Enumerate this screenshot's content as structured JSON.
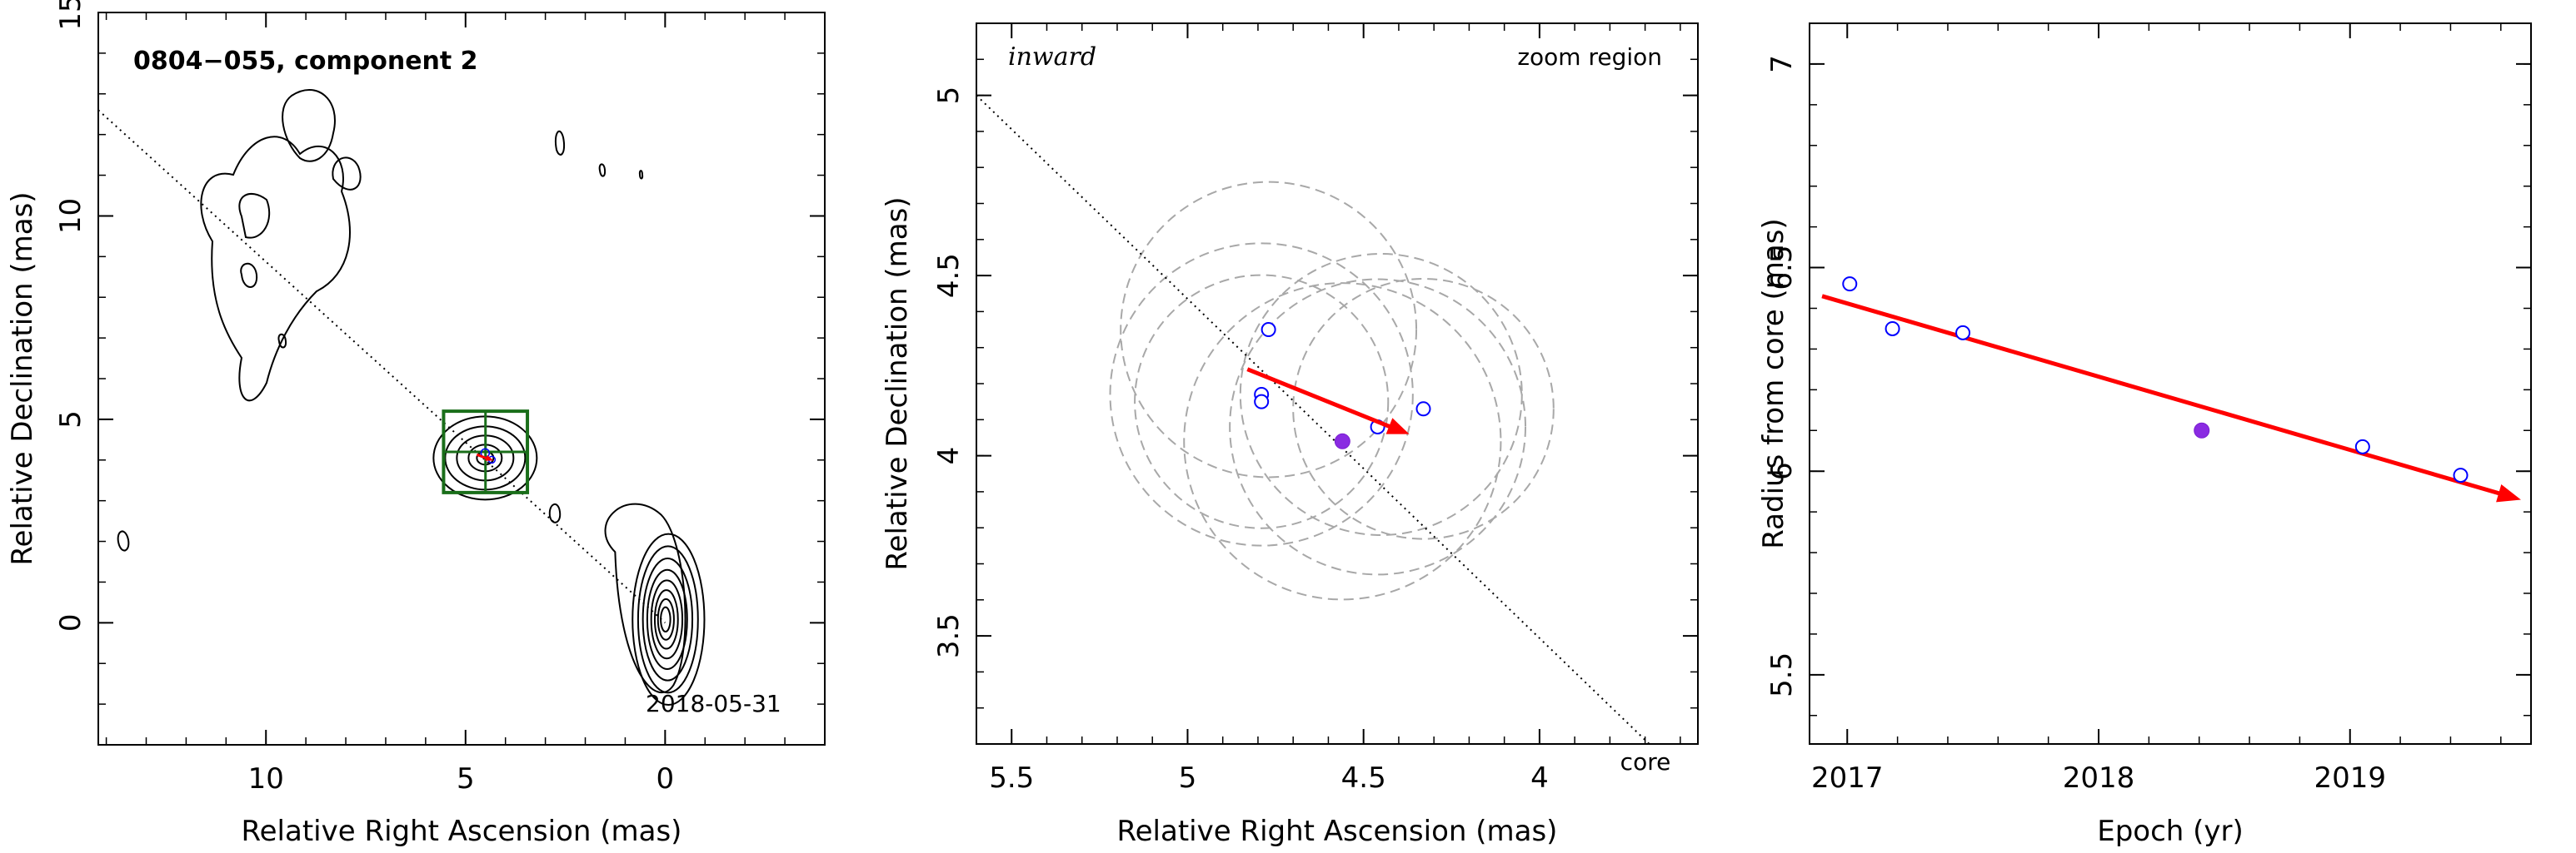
{
  "chart_data": [
    {
      "type": "contour",
      "panel": "left",
      "title": "0804−055, component 2",
      "date_label": "2018-05-31",
      "xlabel": "Relative Right Ascension (mas)",
      "ylabel": "Relative Declination (mas)",
      "xlim": [
        14.2,
        -4.0
      ],
      "ylim": [
        -3.0,
        15.0
      ],
      "xticks": [
        10,
        5,
        0
      ],
      "yticks": [
        0,
        5,
        10,
        15
      ],
      "x_tick_labels": [
        "10",
        "5",
        "0"
      ],
      "y_tick_labels": [
        "0",
        "5",
        "10",
        "15"
      ],
      "core_position": [
        0,
        0
      ],
      "core_contours": [
        {
          "rx": 0.9,
          "ry": 2.1
        },
        {
          "rx": 0.75,
          "ry": 1.8
        },
        {
          "rx": 0.62,
          "ry": 1.5
        },
        {
          "rx": 0.5,
          "ry": 1.22
        },
        {
          "rx": 0.39,
          "ry": 0.96
        },
        {
          "rx": 0.29,
          "ry": 0.72
        },
        {
          "rx": 0.2,
          "ry": 0.5
        },
        {
          "rx": 0.12,
          "ry": 0.3
        }
      ],
      "component_position": [
        4.55,
        4.05
      ],
      "zoom_box": {
        "x": [
          5.55,
          3.45
        ],
        "y": [
          3.2,
          5.2
        ]
      },
      "direction_line": {
        "from": [
          14.2,
          12.6
        ],
        "to": [
          0,
          0
        ]
      },
      "marker_colors": {
        "contour": "#000000",
        "box": "#1a6e1a",
        "arrow": "#ff0000",
        "points": "#0000ff"
      }
    },
    {
      "type": "scatter",
      "panel": "middle",
      "label_left": "inward",
      "label_right": "zoom region",
      "core_label": "core",
      "xlabel": "Relative Right Ascension (mas)",
      "ylabel": "Relative Declination (mas)",
      "xlim": [
        5.6,
        3.55
      ],
      "ylim": [
        3.2,
        5.2
      ],
      "xticks": [
        5.5,
        5,
        4.5,
        4
      ],
      "yticks": [
        3.5,
        4,
        4.5,
        5
      ],
      "x_tick_labels": [
        "5.5",
        "5",
        "4.5",
        "4"
      ],
      "y_tick_labels": [
        "3.5",
        "4",
        "4.5",
        "5"
      ],
      "points_open": [
        {
          "x": 4.77,
          "y": 4.35
        },
        {
          "x": 4.79,
          "y": 4.17
        },
        {
          "x": 4.79,
          "y": 4.15
        },
        {
          "x": 4.46,
          "y": 4.08
        },
        {
          "x": 4.33,
          "y": 4.13
        }
      ],
      "points_filled": [
        {
          "x": 4.56,
          "y": 4.04
        }
      ],
      "arrow": {
        "from": [
          4.83,
          4.24
        ],
        "to": [
          4.37,
          4.06
        ]
      },
      "direction_line": {
        "from": [
          5.6,
          5.0
        ],
        "to": [
          3.55,
          3.07
        ]
      },
      "error_circles": [
        {
          "cx": 4.77,
          "cy": 4.35,
          "r": 0.42
        },
        {
          "cx": 4.79,
          "cy": 4.17,
          "r": 0.43
        },
        {
          "cx": 4.79,
          "cy": 4.15,
          "r": 0.36
        },
        {
          "cx": 4.46,
          "cy": 4.08,
          "r": 0.42
        },
        {
          "cx": 4.33,
          "cy": 4.13,
          "r": 0.37
        },
        {
          "cx": 4.56,
          "cy": 4.04,
          "r": 0.45
        },
        {
          "cx": 4.45,
          "cy": 4.17,
          "r": 0.4
        }
      ]
    },
    {
      "type": "scatter",
      "panel": "right",
      "xlabel": "Epoch (yr)",
      "ylabel": "Radius from core (mas)",
      "xlim": [
        2016.85,
        2019.72
      ],
      "ylim": [
        5.33,
        7.1
      ],
      "xticks": [
        2017,
        2018,
        2019
      ],
      "yticks": [
        5.5,
        6,
        6.5,
        7
      ],
      "x_tick_labels": [
        "2017",
        "2018",
        "2019"
      ],
      "y_tick_labels": [
        "5.5",
        "6",
        "6.5",
        "7"
      ],
      "points_open": [
        {
          "x": 2017.01,
          "y": 6.46
        },
        {
          "x": 2017.18,
          "y": 6.35
        },
        {
          "x": 2017.46,
          "y": 6.34
        },
        {
          "x": 2019.05,
          "y": 6.06
        },
        {
          "x": 2019.44,
          "y": 5.99
        }
      ],
      "points_filled": [
        {
          "x": 2018.41,
          "y": 6.1
        }
      ],
      "fit_arrow": {
        "from": [
          2016.9,
          6.43
        ],
        "to": [
          2019.68,
          5.93
        ]
      }
    }
  ]
}
